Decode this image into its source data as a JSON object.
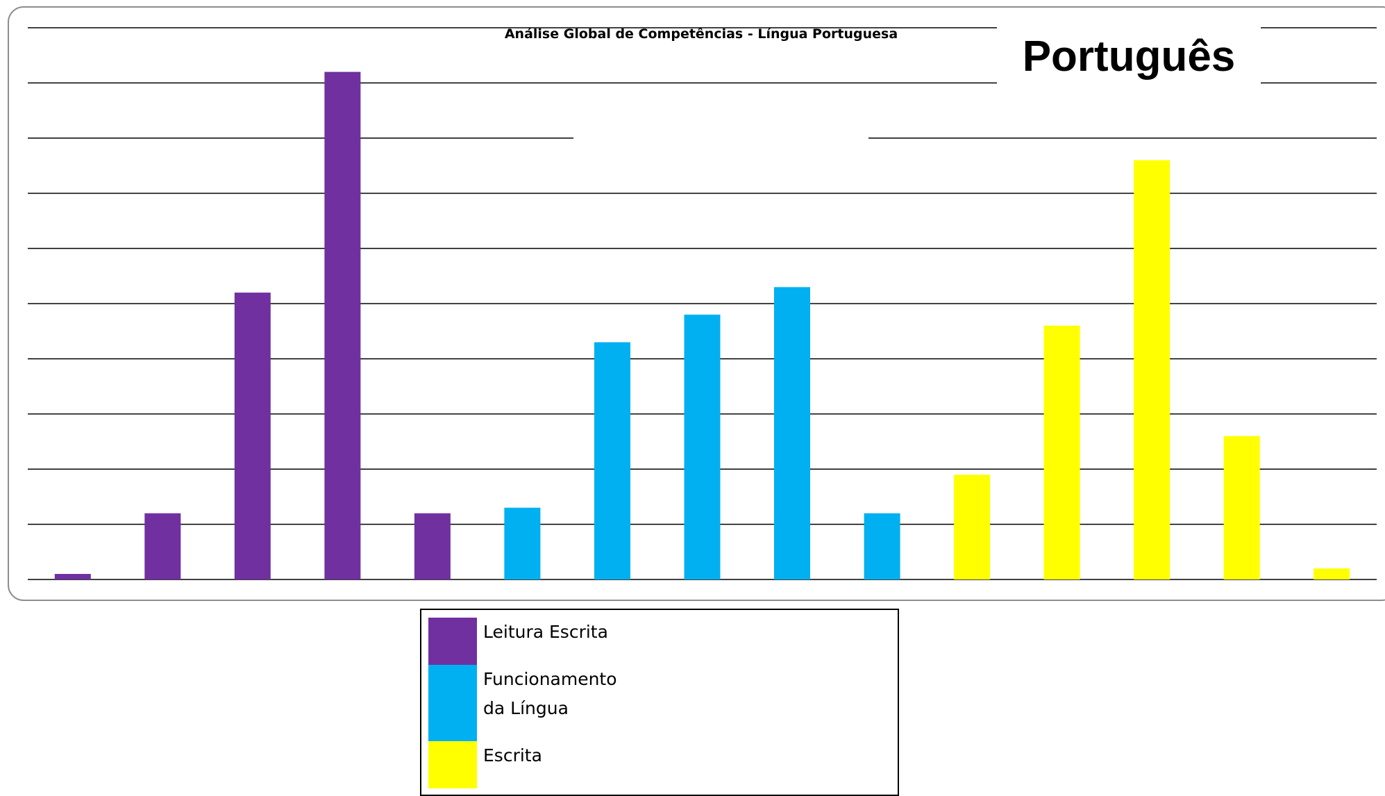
{
  "chart_data": {
    "type": "bar",
    "title": "Análise Global de Competências - Língua Portuguesa",
    "subject_label": "Português",
    "ylim": [
      0,
      10
    ],
    "grid": true,
    "legend_position": "bottom-center",
    "series": [
      {
        "name": "Leitura Escrita",
        "color": "#7030A0",
        "values": [
          0.1,
          1.2,
          5.2,
          9.2,
          1.2
        ]
      },
      {
        "name": "Funcionamento da Língua",
        "color": "#00B0F0",
        "values": [
          1.3,
          4.3,
          4.8,
          5.3,
          1.2
        ]
      },
      {
        "name": "Escrita",
        "color": "#FFFF00",
        "values": [
          1.9,
          4.6,
          7.6,
          2.6,
          0.2
        ]
      }
    ]
  }
}
